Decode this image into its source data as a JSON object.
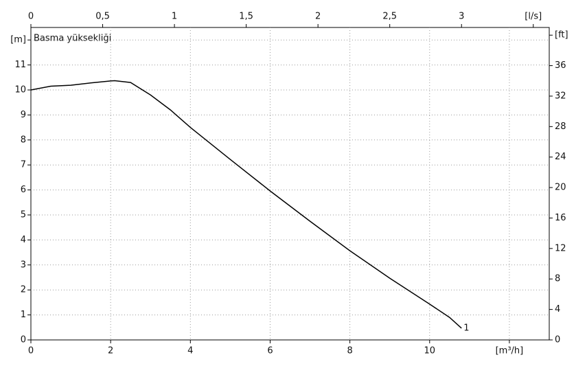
{
  "chart_data": {
    "type": "line",
    "x": [
      0,
      0.5,
      1,
      1.5,
      2,
      2.1,
      2.5,
      3,
      3.5,
      4,
      5,
      6,
      7,
      8,
      9,
      10,
      10.5,
      10.8
    ],
    "series": [
      {
        "name": "1",
        "color": "#000000",
        "values": [
          10.0,
          10.15,
          10.19,
          10.28,
          10.36,
          10.37,
          10.3,
          9.8,
          9.2,
          8.5,
          7.22,
          5.96,
          4.75,
          3.57,
          2.47,
          1.43,
          0.9,
          0.47
        ]
      }
    ],
    "ylabel": "Basma yüksekliği",
    "xlim": [
      0,
      13
    ],
    "xticks": [
      0,
      2,
      4,
      6,
      8,
      10,
      {
        "value": 12,
        "label": "[m³/h]"
      }
    ],
    "x2lim": [
      0,
      3.6111
    ],
    "x2ticks": [
      0,
      {
        "value": 0.5,
        "label": "0,5"
      },
      1,
      {
        "value": 1.5,
        "label": "1,5"
      },
      2,
      {
        "value": 2.5,
        "label": "2,5"
      },
      3,
      {
        "value": 3.5,
        "label": "[l/s]"
      }
    ],
    "ylim": [
      0,
      12.5
    ],
    "yticks": [
      0,
      1,
      2,
      3,
      4,
      5,
      6,
      7,
      8,
      9,
      10,
      11,
      {
        "value": 12,
        "label": "[m]"
      }
    ],
    "y2lim": [
      0,
      41.01
    ],
    "y2ticks": [
      0,
      4,
      8,
      12,
      16,
      20,
      24,
      28,
      32,
      36,
      {
        "value": 40,
        "label": "[ft]"
      }
    ],
    "grid": true
  }
}
